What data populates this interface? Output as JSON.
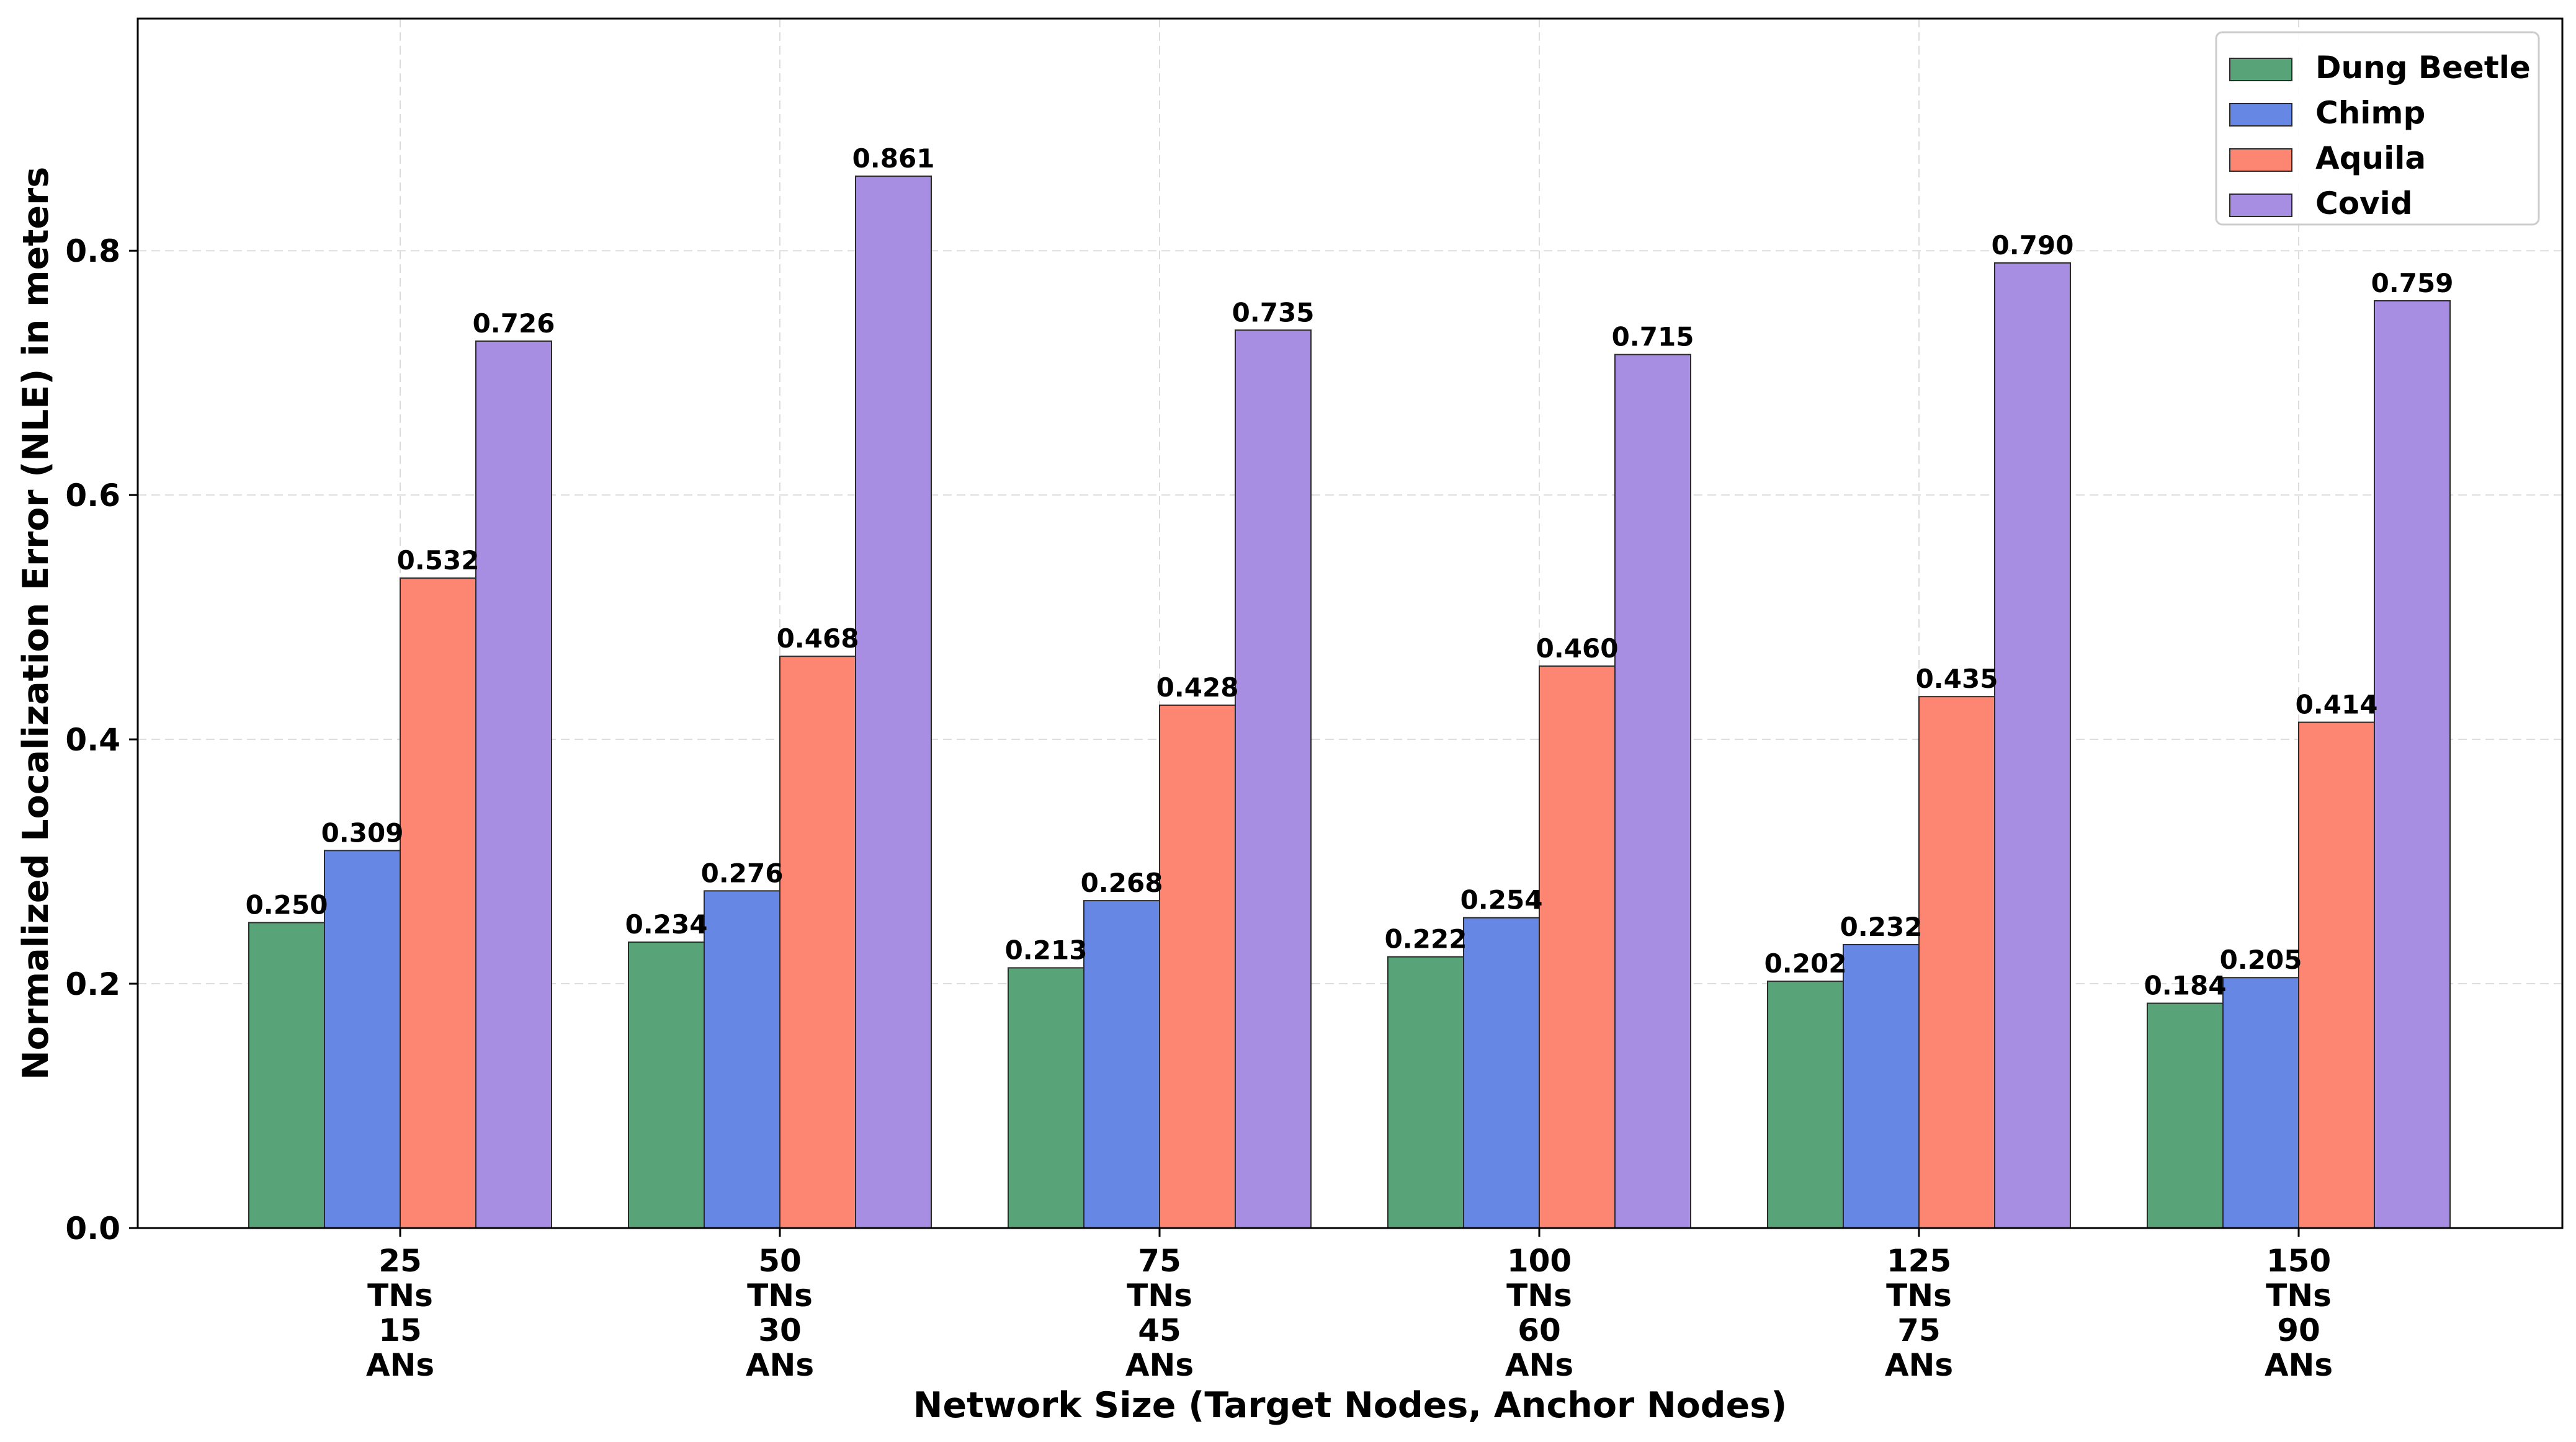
{
  "chart_data": {
    "type": "bar",
    "title": "",
    "xlabel": "Network Size (Target Nodes, Anchor Nodes)",
    "ylabel": "Normalized Localization Error (NLE) in meters",
    "ylim": [
      0,
      0.99
    ],
    "yticks": [
      "0.0",
      "0.2",
      "0.4",
      "0.6",
      "0.8"
    ],
    "grid": true,
    "legend_position": "top-right",
    "categories": [
      [
        "25",
        "TNs",
        "15",
        "ANs"
      ],
      [
        "50",
        "TNs",
        "30",
        "ANs"
      ],
      [
        "75",
        "TNs",
        "45",
        "ANs"
      ],
      [
        "100",
        "TNs",
        "60",
        "ANs"
      ],
      [
        "125",
        "TNs",
        "75",
        "ANs"
      ],
      [
        "150",
        "TNs",
        "90",
        "ANs"
      ]
    ],
    "series": [
      {
        "name": "Dung Beetle",
        "color": "#58a377",
        "values": [
          0.25,
          0.234,
          0.213,
          0.222,
          0.202,
          0.184
        ],
        "labels": [
          "0.250",
          "0.234",
          "0.213",
          "0.222",
          "0.202",
          "0.184"
        ]
      },
      {
        "name": "Chimp",
        "color": "#6687e3",
        "values": [
          0.309,
          0.276,
          0.268,
          0.254,
          0.232,
          0.205
        ],
        "labels": [
          "0.309",
          "0.276",
          "0.268",
          "0.254",
          "0.232",
          "0.205"
        ]
      },
      {
        "name": "Aquila",
        "color": "#fc8672",
        "values": [
          0.532,
          0.468,
          0.428,
          0.46,
          0.435,
          0.414
        ],
        "labels": [
          "0.532",
          "0.468",
          "0.428",
          "0.460",
          "0.435",
          "0.414"
        ]
      },
      {
        "name": "Covid",
        "color": "#a78ee2",
        "values": [
          0.726,
          0.861,
          0.735,
          0.715,
          0.79,
          0.759
        ],
        "labels": [
          "0.726",
          "0.861",
          "0.735",
          "0.715",
          "0.790",
          "0.759"
        ]
      }
    ]
  }
}
